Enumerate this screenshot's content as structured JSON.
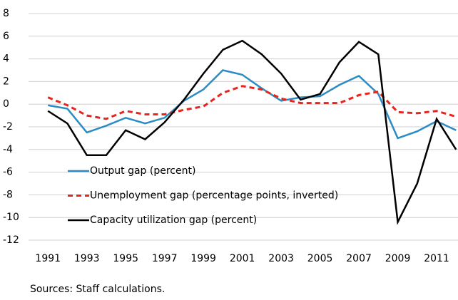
{
  "chart_data": {
    "type": "line",
    "x": [
      1991,
      1992,
      1993,
      1994,
      1995,
      1996,
      1997,
      1998,
      1999,
      2000,
      2001,
      2002,
      2003,
      2004,
      2005,
      2006,
      2007,
      2008,
      2009,
      2010,
      2011,
      2012
    ],
    "series": [
      {
        "name": "Output gap (percent)",
        "color": "#2b8cc4",
        "dash": "solid",
        "values": [
          -0.1,
          -0.4,
          -2.5,
          -1.9,
          -1.2,
          -1.7,
          -1.2,
          0.3,
          1.3,
          3.0,
          2.6,
          1.4,
          0.3,
          0.6,
          0.7,
          1.7,
          2.5,
          0.9,
          -3.0,
          -2.4,
          -1.5,
          -2.3
        ]
      },
      {
        "name": "Unemployment gap (percentage points, inverted)",
        "color": "#e8241d",
        "dash": "dashed",
        "values": [
          0.6,
          -0.1,
          -1.0,
          -1.3,
          -0.6,
          -0.9,
          -0.9,
          -0.5,
          -0.2,
          1.0,
          1.6,
          1.3,
          0.5,
          0.1,
          0.1,
          0.1,
          0.8,
          1.1,
          -0.7,
          -0.8,
          -0.6,
          -1.1
        ]
      },
      {
        "name": "Capacity utilization gap (percent)",
        "color": "#000000",
        "dash": "solid",
        "values": [
          -0.6,
          -1.7,
          -4.5,
          -4.5,
          -2.3,
          -3.1,
          -1.6,
          0.4,
          2.7,
          4.8,
          5.6,
          4.4,
          2.7,
          0.4,
          0.9,
          3.7,
          5.5,
          4.4,
          -10.4,
          -7.0,
          -1.3,
          -4.0
        ]
      }
    ],
    "xlim": [
      1990,
      2012.1
    ],
    "xticks": [
      1991,
      1993,
      1995,
      1997,
      1999,
      2001,
      2003,
      2005,
      2007,
      2009,
      2011
    ],
    "ylim": [
      -12,
      8
    ],
    "yticks": [
      -12,
      -10,
      -8,
      -6,
      -4,
      -2,
      0,
      2,
      4,
      6,
      8
    ],
    "grid": true,
    "legend": "lower-left",
    "source": "Sources: Staff calculations."
  }
}
